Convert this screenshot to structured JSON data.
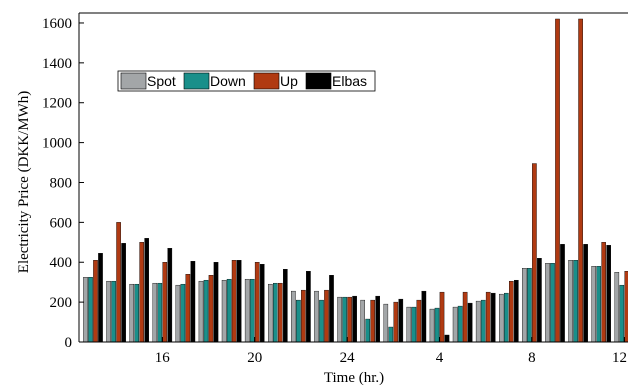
{
  "chart_data": {
    "type": "bar",
    "xlabel": "Time (hr.)",
    "ylabel": "Electricity Price (DKK/MWh)",
    "ylim": [
      0,
      1650
    ],
    "yticks": [
      0,
      200,
      400,
      600,
      800,
      1000,
      1200,
      1400,
      1600
    ],
    "categories": [
      "13",
      "14",
      "15",
      "16",
      "17",
      "18",
      "19",
      "20",
      "21",
      "22",
      "23",
      "24",
      "1",
      "2",
      "3",
      "4",
      "5",
      "6",
      "7",
      "8",
      "9",
      "10",
      "11",
      "12"
    ],
    "xtick_labels": [
      "16",
      "20",
      "24",
      "4",
      "8",
      "12"
    ],
    "xtick_categories": [
      "16",
      "20",
      "24",
      "4",
      "8",
      "12"
    ],
    "legend_position": "upper-left",
    "colors": {
      "Spot": "#a3a6a8",
      "Down": "#1a8f8a",
      "Up": "#b03a12",
      "Elbas": "#000000"
    },
    "series": [
      {
        "name": "Spot",
        "values": [
          325,
          305,
          290,
          295,
          285,
          305,
          310,
          315,
          290,
          255,
          255,
          225,
          210,
          190,
          175,
          165,
          175,
          205,
          240,
          370,
          395,
          410,
          380,
          350
        ]
      },
      {
        "name": "Down",
        "values": [
          325,
          305,
          290,
          295,
          290,
          310,
          315,
          315,
          295,
          210,
          210,
          225,
          115,
          75,
          175,
          170,
          180,
          210,
          245,
          370,
          395,
          410,
          380,
          285
        ]
      },
      {
        "name": "Up",
        "values": [
          410,
          600,
          500,
          400,
          340,
          335,
          410,
          400,
          295,
          260,
          260,
          225,
          210,
          200,
          210,
          250,
          250,
          250,
          305,
          895,
          1620,
          1620,
          500,
          355
        ]
      },
      {
        "name": "Elbas",
        "values": [
          445,
          495,
          520,
          470,
          405,
          400,
          410,
          390,
          365,
          355,
          335,
          230,
          230,
          215,
          255,
          35,
          195,
          245,
          310,
          420,
          490,
          490,
          485,
          475
        ]
      }
    ]
  }
}
